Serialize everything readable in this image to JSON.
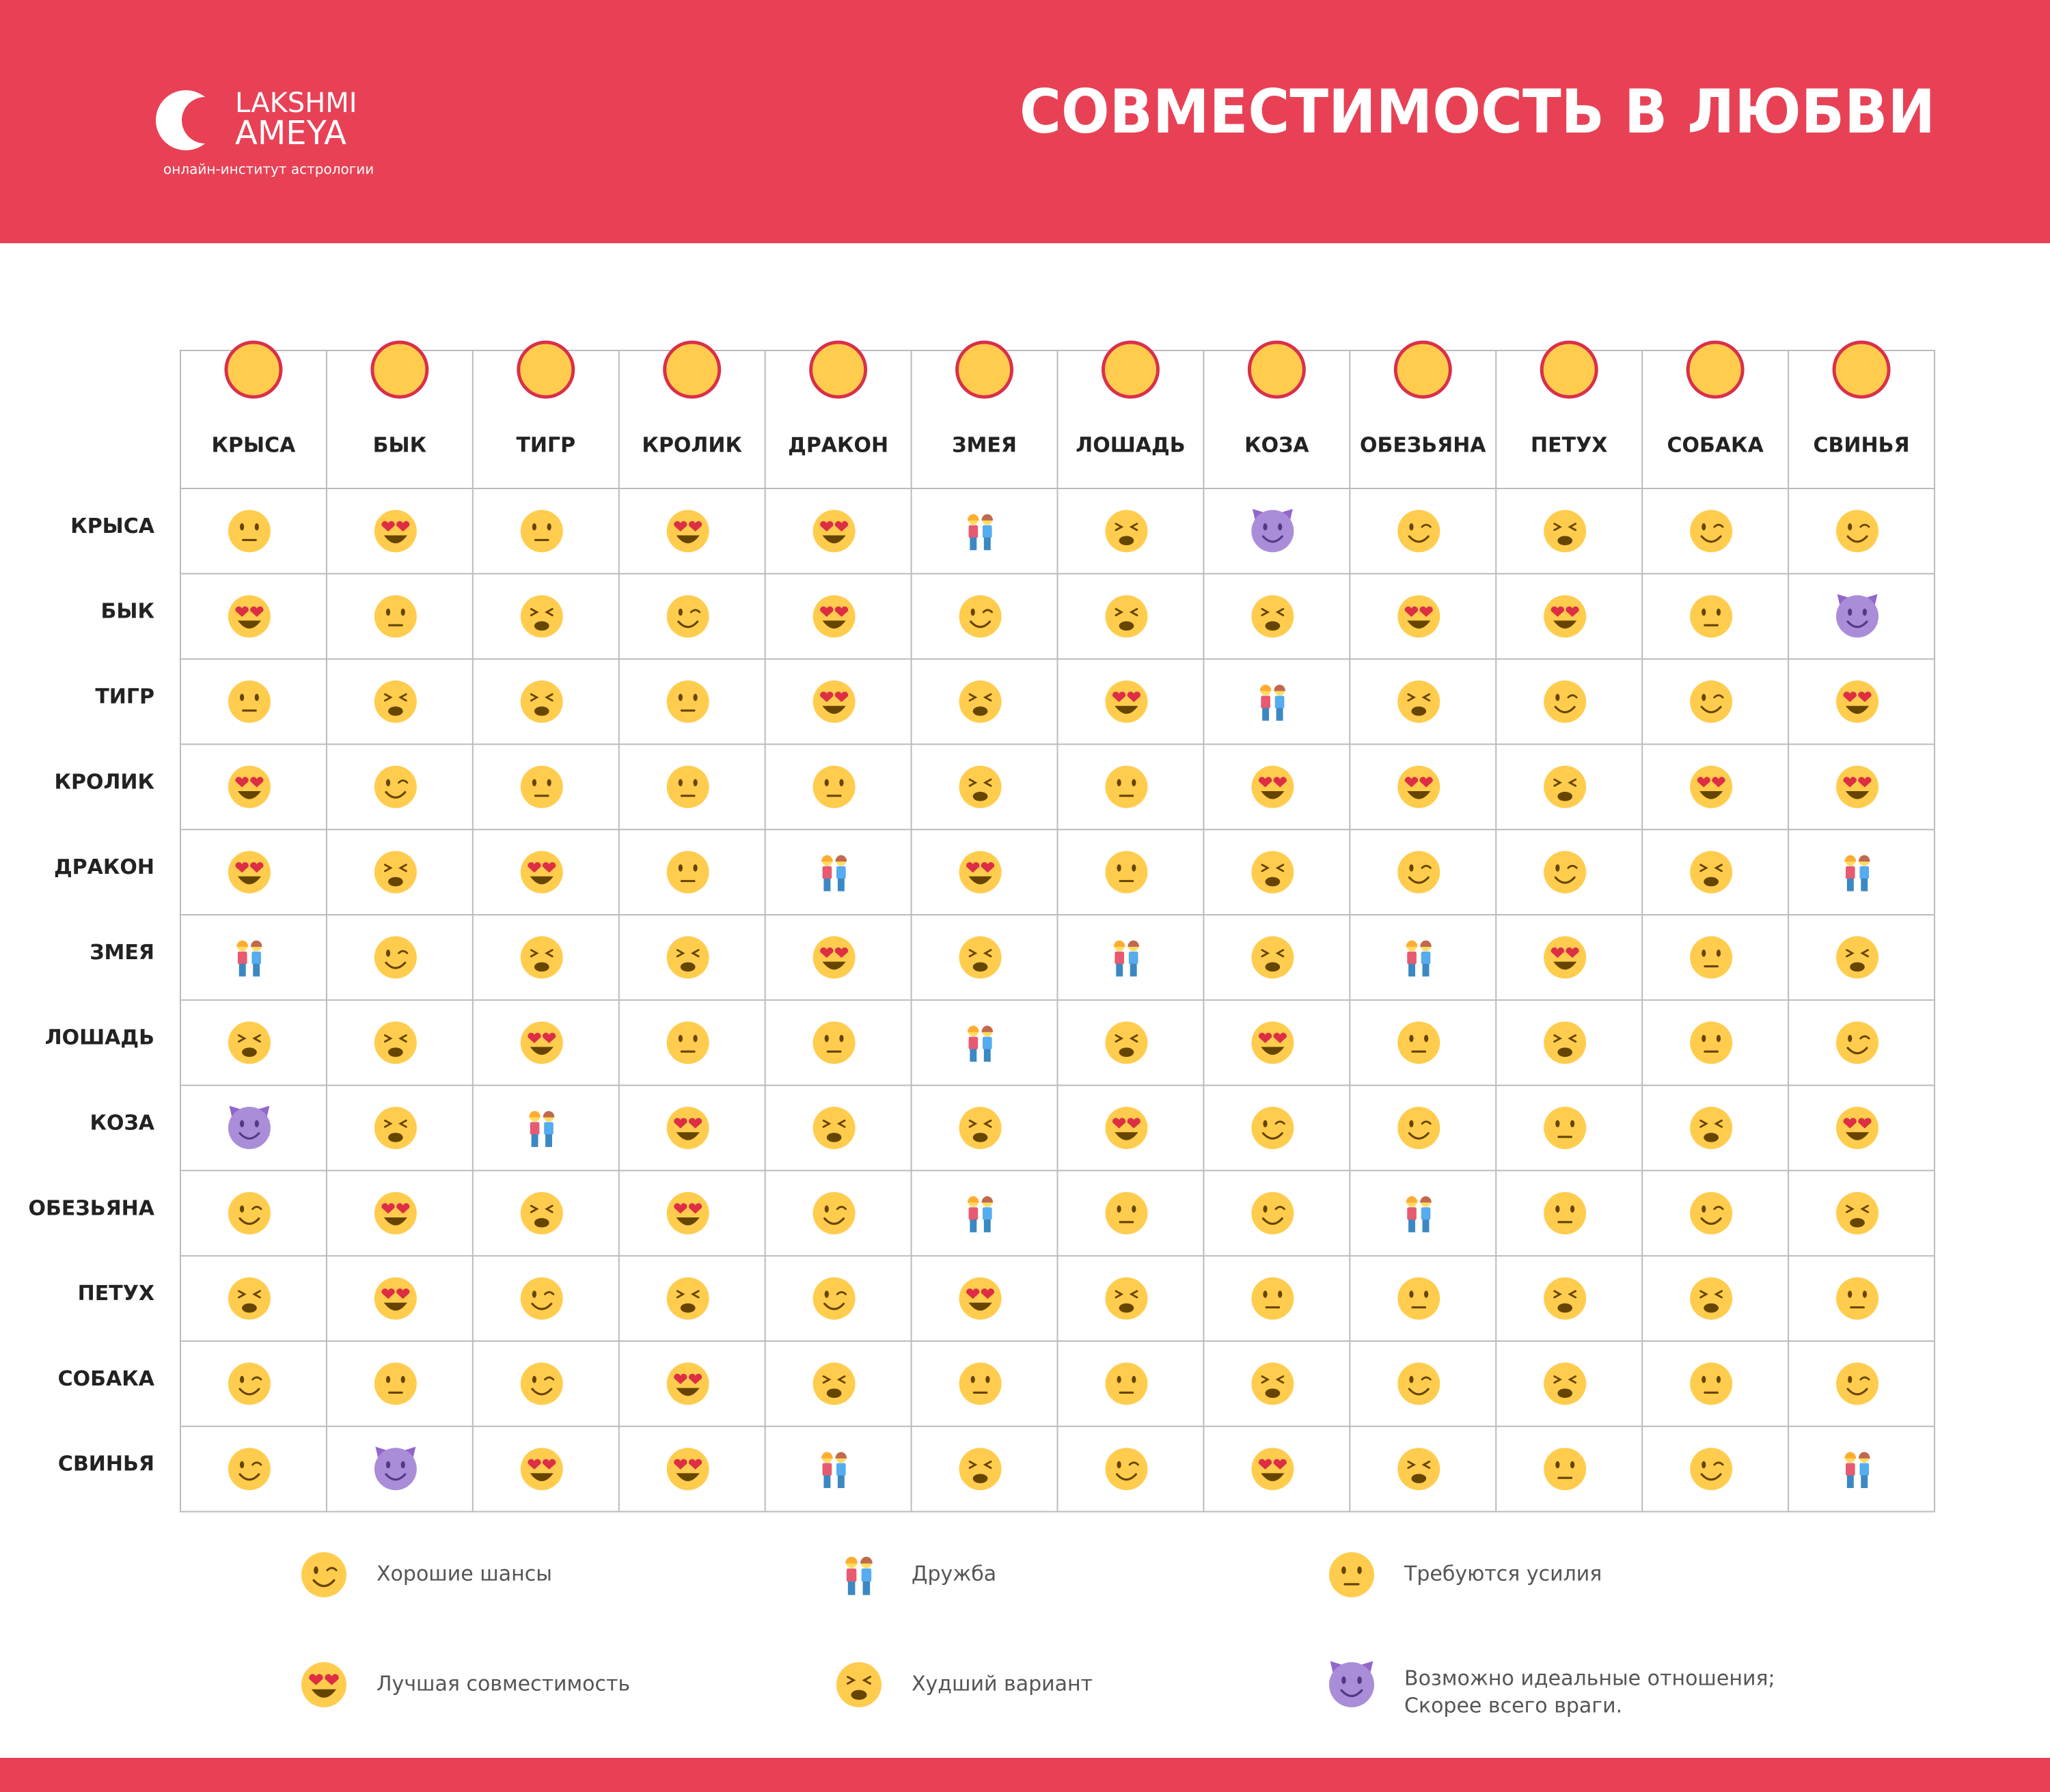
{
  "header": {
    "logo": {
      "line1": "LAKSHMI",
      "line2": "AMEYA",
      "tagline": "онлайн-институт астрологии"
    },
    "title": "СОВМЕСТИМОСТЬ В ЛЮБВИ"
  },
  "table": {
    "columns": [
      "КРЫСА",
      "БЫК",
      "ТИГР",
      "КРОЛИК",
      "ДРАКОН",
      "ЗМЕЯ",
      "ЛОШАДЬ",
      "КОЗА",
      "ОБЕЗЬЯНА",
      "ПЕТУХ",
      "СОБАКА",
      "СВИНЬЯ"
    ],
    "rows": [
      {
        "label": "КРЫСА",
        "cells": [
          2,
          3,
          2,
          3,
          3,
          1,
          4,
          5,
          0,
          4,
          0,
          0
        ]
      },
      {
        "label": "БЫК",
        "cells": [
          3,
          2,
          4,
          0,
          3,
          0,
          4,
          4,
          3,
          3,
          2,
          5
        ]
      },
      {
        "label": "ТИГР",
        "cells": [
          2,
          4,
          4,
          2,
          3,
          4,
          3,
          1,
          4,
          0,
          0,
          3
        ]
      },
      {
        "label": "КРОЛИК",
        "cells": [
          3,
          0,
          2,
          2,
          2,
          4,
          2,
          3,
          3,
          4,
          3,
          3
        ]
      },
      {
        "label": "ДРАКОН",
        "cells": [
          3,
          4,
          3,
          2,
          1,
          3,
          2,
          4,
          0,
          0,
          4,
          1
        ]
      },
      {
        "label": "ЗМЕЯ",
        "cells": [
          1,
          0,
          4,
          4,
          3,
          4,
          1,
          4,
          1,
          3,
          2,
          4
        ]
      },
      {
        "label": "ЛОШАДЬ",
        "cells": [
          4,
          4,
          3,
          2,
          2,
          1,
          4,
          3,
          2,
          4,
          2,
          0
        ]
      },
      {
        "label": "КОЗА",
        "cells": [
          5,
          4,
          1,
          3,
          4,
          4,
          3,
          0,
          0,
          2,
          4,
          3
        ]
      },
      {
        "label": "ОБЕЗЬЯНА",
        "cells": [
          0,
          3,
          4,
          3,
          0,
          1,
          2,
          0,
          1,
          2,
          0,
          4
        ]
      },
      {
        "label": "ПЕТУХ",
        "cells": [
          4,
          3,
          0,
          4,
          0,
          3,
          4,
          2,
          2,
          4,
          4,
          2
        ]
      },
      {
        "label": "СОБАКА",
        "cells": [
          0,
          2,
          0,
          3,
          4,
          2,
          2,
          4,
          0,
          4,
          2,
          0
        ]
      },
      {
        "label": "СВИНЬЯ",
        "cells": [
          0,
          5,
          3,
          3,
          1,
          4,
          0,
          3,
          4,
          2,
          0,
          1
        ]
      }
    ]
  },
  "legend": [
    {
      "label": "Хорошие шансы"
    },
    {
      "label": "Дружба"
    },
    {
      "label": "Требуются усилия"
    },
    {
      "label": "Лучшая совместимость"
    },
    {
      "label": "Худший вариант"
    },
    {
      "lines": [
        "Возможно идеальные отношения;",
        "Скорее всего враги."
      ]
    }
  ]
}
